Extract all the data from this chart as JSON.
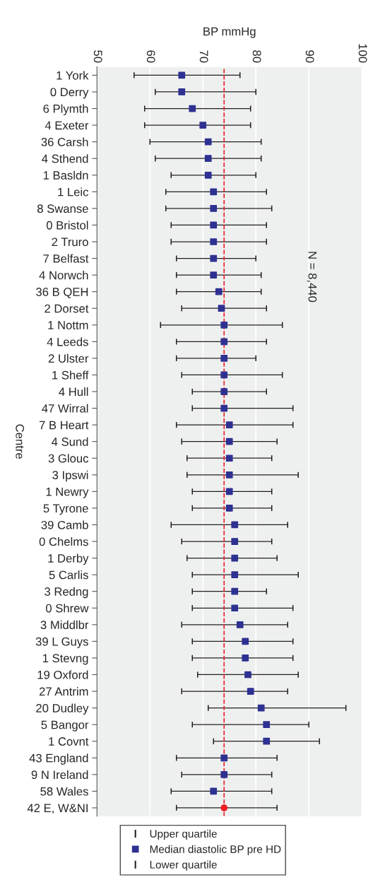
{
  "chart_data": {
    "type": "scatter",
    "orientation": "horizontal",
    "xlabel": "BP mmHg",
    "ylabel": "Centre",
    "categories": [
      "1 York",
      "0 Derry",
      "6 Plymth",
      "4 Exeter",
      "36 Carsh",
      "4 Sthend",
      "1 Basldn",
      "1 Leic",
      "8 Swanse",
      "0 Bristol",
      "2 Truro",
      "7 Belfast",
      "4 Norwch",
      "36 B QEH",
      "2 Dorset",
      "1 Nottm",
      "4 Leeds",
      "2 Ulster",
      "1 Sheff",
      "4 Hull",
      "47 Wirral",
      "7 B Heart",
      "4 Sund",
      "3 Glouc",
      "3 Ipswi",
      "1 Newry",
      "5 Tyrone",
      "39 Camb",
      "0 Chelms",
      "1 Derby",
      "5 Carlis",
      "3 Redng",
      "0 Shrew",
      "3 Middlbr",
      "39 L Guys",
      "1 Stevng",
      "19 Oxford",
      "27 Antrim",
      "20 Dudley",
      "5 Bangor",
      "1 Covnt",
      "43 England",
      "9 N Ireland",
      "58 Wales",
      "42 E, W&NI"
    ],
    "series": [
      {
        "name": "Median diastolic BP pre HD",
        "color": "#2e3192",
        "marker": "square",
        "values": [
          66,
          66,
          68,
          70,
          71,
          71,
          71,
          72,
          72,
          72,
          72,
          72,
          72,
          73,
          73.5,
          74,
          74,
          74,
          74,
          74,
          74,
          75,
          75,
          75,
          75,
          75,
          75,
          76,
          76,
          76,
          76,
          76,
          76,
          77,
          78,
          78,
          78.5,
          79,
          81,
          82,
          82,
          74,
          74,
          72,
          null
        ],
        "errors": [
          [
            57,
            77
          ],
          [
            61,
            80
          ],
          [
            59,
            79
          ],
          [
            59,
            79
          ],
          [
            60,
            81
          ],
          [
            61,
            81
          ],
          [
            64,
            80
          ],
          [
            63,
            82
          ],
          [
            63,
            83
          ],
          [
            64,
            82
          ],
          [
            64,
            82
          ],
          [
            65,
            80
          ],
          [
            65,
            81
          ],
          [
            65,
            81
          ],
          [
            66,
            82
          ],
          [
            62,
            85
          ],
          [
            65,
            82
          ],
          [
            65,
            80
          ],
          [
            66,
            85
          ],
          [
            68,
            82
          ],
          [
            68,
            87
          ],
          [
            65,
            87
          ],
          [
            66,
            84
          ],
          [
            67,
            83
          ],
          [
            67,
            88
          ],
          [
            68,
            83
          ],
          [
            68,
            83
          ],
          [
            64,
            86
          ],
          [
            66,
            83
          ],
          [
            67,
            84
          ],
          [
            68,
            88
          ],
          [
            68,
            82
          ],
          [
            68,
            87
          ],
          [
            66,
            86
          ],
          [
            68,
            87
          ],
          [
            68,
            87
          ],
          [
            69,
            88
          ],
          [
            66,
            86
          ],
          [
            71,
            97
          ],
          [
            68,
            90
          ],
          [
            72,
            92
          ],
          [
            65,
            84
          ],
          [
            66,
            83
          ],
          [
            64,
            83
          ],
          null
        ]
      },
      {
        "color": "#ee1c24",
        "marker": "circle",
        "values": [
          null,
          null,
          null,
          null,
          null,
          null,
          null,
          null,
          null,
          null,
          null,
          null,
          null,
          null,
          null,
          null,
          null,
          null,
          null,
          null,
          null,
          null,
          null,
          null,
          null,
          null,
          null,
          null,
          null,
          null,
          null,
          null,
          null,
          null,
          null,
          null,
          null,
          null,
          null,
          null,
          null,
          null,
          null,
          null,
          74
        ],
        "errors": [
          null,
          null,
          null,
          null,
          null,
          null,
          null,
          null,
          null,
          null,
          null,
          null,
          null,
          null,
          null,
          null,
          null,
          null,
          null,
          null,
          null,
          null,
          null,
          null,
          null,
          null,
          null,
          null,
          null,
          null,
          null,
          null,
          null,
          null,
          null,
          null,
          null,
          null,
          null,
          null,
          null,
          null,
          null,
          null,
          [
            65,
            84
          ]
        ]
      }
    ],
    "xlim": [
      50,
      100
    ],
    "xticks": [
      50,
      60,
      70,
      80,
      90,
      100
    ],
    "ref_lines": [
      {
        "axis": "x",
        "value": 74,
        "color": "#e8202a",
        "line_style": "dashed"
      }
    ],
    "annotations": [
      "N = 8,440",
      "Upper quartile",
      "Lower quartile"
    ],
    "grid": "x",
    "legend": "bottom"
  }
}
